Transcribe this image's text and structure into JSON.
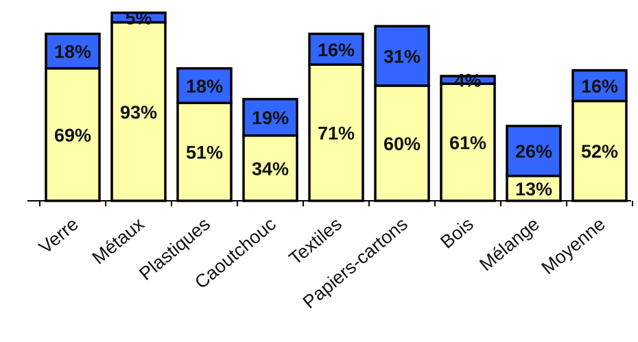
{
  "chart_data": {
    "type": "bar",
    "stacked": true,
    "categories": [
      "Verre",
      "Métaux",
      "Plastiques",
      "Caoutchouc",
      "Textiles",
      "Papiers-cartons",
      "Bois",
      "Mélange",
      "Moyenne"
    ],
    "series": [
      {
        "values": [
          69,
          93,
          51,
          34,
          71,
          60,
          61,
          13,
          52
        ],
        "color": "#ffffaa"
      },
      {
        "values": [
          18,
          5,
          18,
          19,
          16,
          31,
          4,
          26,
          16
        ],
        "color": "#3366ff"
      }
    ],
    "ylim": [
      0,
      100
    ],
    "grid": false,
    "legend": "none",
    "value_labels": [
      [
        "69%",
        "93%",
        "51%",
        "34%",
        "71%",
        "60%",
        "61%",
        "13%",
        "52%"
      ],
      [
        "18%",
        "5%",
        "18%",
        "19%",
        "16%",
        "31%",
        "4%",
        "26%",
        "16%"
      ]
    ]
  }
}
